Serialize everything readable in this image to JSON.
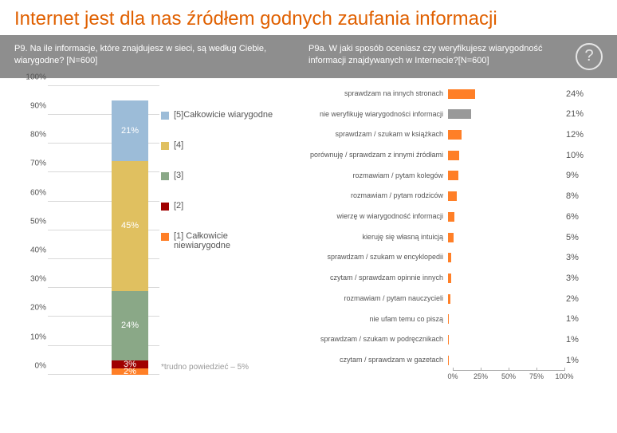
{
  "title": "Internet jest dla nas źródłem godnych zaufania informacji",
  "q_left": "P9. Na ile informacje, które znajdujesz w sieci, są według Ciebie, wiarygodne? [N=600]",
  "q_right": "P9a. W jaki sposób oceniasz czy weryfikujesz wiarygodność informacji znajdywanych w Internecie?[N=600]",
  "help_glyph": "?",
  "stack": {
    "ylim": [
      0,
      100
    ],
    "ytick_step": 10,
    "ytick_suffix": "%",
    "grid_color": "#d9d9d9",
    "segments": [
      {
        "value": 2,
        "color": "#ff7f27",
        "label": "2%"
      },
      {
        "value": 3,
        "color": "#a00000",
        "label": "3%"
      },
      {
        "value": 24,
        "color": "#8aa887",
        "label": "24%"
      },
      {
        "value": 45,
        "color": "#e0c060",
        "label": "45%"
      },
      {
        "value": 21,
        "color": "#9cbcd8",
        "label": "21%"
      }
    ],
    "legend": [
      {
        "color": "#9cbcd8",
        "text": "[5]Całkowicie wiarygodne"
      },
      {
        "color": "#e0c060",
        "text": "[4]"
      },
      {
        "color": "#8aa887",
        "text": "[3]"
      },
      {
        "color": "#a00000",
        "text": "[2]"
      },
      {
        "color": "#ff7f27",
        "text": "[1] Całkowicie niewiarygodne"
      }
    ],
    "footnote": "*trudno powiedzieć – 5%"
  },
  "hbar": {
    "xlim": [
      0,
      100
    ],
    "xtick_step": 25,
    "xtick_suffix": "%",
    "default_color": "#ff7f27",
    "rows": [
      {
        "label": "sprawdzam na innych stronach",
        "value": 24,
        "color": "#ff7f27"
      },
      {
        "label": "nie weryfikuję wiarygodności informacji",
        "value": 21,
        "color": "#999999"
      },
      {
        "label": "sprawdzam / szukam w książkach",
        "value": 12,
        "color": "#ff7f27"
      },
      {
        "label": "porównuję / sprawdzam z innymi źródłami",
        "value": 10,
        "color": "#ff7f27"
      },
      {
        "label": "rozmawiam / pytam kolegów",
        "value": 9,
        "color": "#ff7f27"
      },
      {
        "label": "rozmawiam / pytam rodziców",
        "value": 8,
        "color": "#ff7f27"
      },
      {
        "label": "wierzę w wiarygodność informacji",
        "value": 6,
        "color": "#ff7f27"
      },
      {
        "label": "kieruję się własną intuicją",
        "value": 5,
        "color": "#ff7f27"
      },
      {
        "label": "sprawdzam / szukam w encyklopedii",
        "value": 3,
        "color": "#ff7f27"
      },
      {
        "label": "czytam / sprawdzam opinnie innych",
        "value": 3,
        "color": "#ff7f27"
      },
      {
        "label": "rozmawiam / pytam nauczycieli",
        "value": 2,
        "color": "#ff7f27"
      },
      {
        "label": "nie ufam temu co piszą",
        "value": 1,
        "color": "#ff7f27"
      },
      {
        "label": "sprawdzam / szukam w podręcznikach",
        "value": 1,
        "color": "#ff7f27"
      },
      {
        "label": "czytam / sprawdzam w gazetach",
        "value": 1,
        "color": "#ff7f27"
      }
    ]
  }
}
